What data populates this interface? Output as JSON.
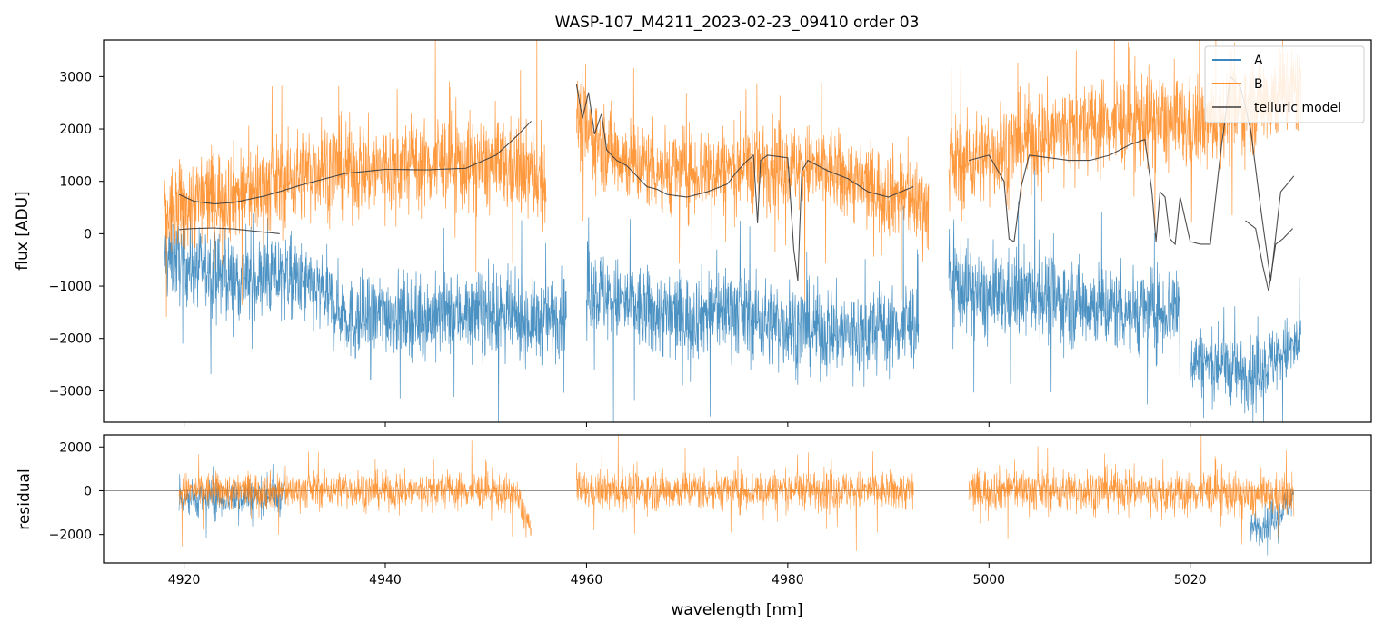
{
  "figure": {
    "title": "WASP-107_M4211_2023-02-23_09410  order 03"
  },
  "colors": {
    "A": "#1f77b4",
    "B": "#ff7f0e",
    "telluric": "#3b3b3b"
  },
  "chart_data": [
    {
      "type": "line",
      "panel": "top",
      "title": "WASP-107_M4211_2023-02-23_09410  order 03",
      "xlabel": "",
      "ylabel": "flux [ADU]",
      "xlim": [
        4912,
        5038
      ],
      "ylim": [
        -3600,
        3700
      ],
      "xticks": [
        4920,
        4940,
        4960,
        4980,
        5000,
        5020
      ],
      "yticks": [
        -3000,
        -2000,
        -1000,
        0,
        1000,
        2000,
        3000
      ],
      "legend": {
        "position": "top-right",
        "entries": [
          "A",
          "B",
          "telluric model"
        ]
      },
      "series": [
        {
          "name": "A",
          "style": "noisy",
          "segments": [
            {
              "x": [
                4918,
                4919,
                4922,
                4926,
                4930,
                4934,
                4937,
                4940,
                4944,
                4948,
                4952,
                4955,
                4958
              ],
              "y": [
                -400,
                -500,
                -700,
                -900,
                -800,
                -1200,
                -1700,
                -1500,
                -1600,
                -1500,
                -1600,
                -1700,
                -1500
              ],
              "noise": 1200
            },
            {
              "x": [
                4960,
                4963,
                4966,
                4970,
                4974,
                4978,
                4982,
                4986,
                4990,
                4993
              ],
              "y": [
                -1000,
                -1300,
                -1500,
                -1600,
                -1400,
                -1700,
                -1800,
                -1900,
                -1800,
                -1700
              ],
              "noise": 1300
            },
            {
              "x": [
                4996,
                5000,
                5004,
                5008,
                5012,
                5016,
                5019
              ],
              "y": [
                -800,
                -1300,
                -1100,
                -1300,
                -1400,
                -1500,
                -1400
              ],
              "noise": 1300
            },
            {
              "x": [
                5020,
                5023,
                5026,
                5029,
                5031
              ],
              "y": [
                -2400,
                -2500,
                -2700,
                -2300,
                -2100
              ],
              "noise": 1000
            }
          ]
        },
        {
          "name": "B",
          "style": "noisy",
          "segments": [
            {
              "x": [
                4918,
                4922,
                4926,
                4930,
                4934,
                4938,
                4942,
                4946,
                4950,
                4954,
                4956
              ],
              "y": [
                300,
                700,
                800,
                1000,
                1300,
                1200,
                1300,
                1400,
                1300,
                1200,
                1000
              ],
              "noise": 1400
            },
            {
              "x": [
                4959,
                4961,
                4964,
                4968,
                4972,
                4976,
                4980,
                4984,
                4988,
                4992,
                4994
              ],
              "y": [
                2200,
                1800,
                1400,
                1200,
                1200,
                1300,
                1300,
                1200,
                900,
                700,
                500
              ],
              "noise": 1300
            },
            {
              "x": [
                4996,
                5000,
                5004,
                5008,
                5012,
                5016,
                5020,
                5024,
                5028,
                5031
              ],
              "y": [
                1300,
                1500,
                1800,
                2000,
                2100,
                2200,
                2000,
                2300,
                2600,
                2800
              ],
              "noise": 1400
            }
          ]
        },
        {
          "name": "telluric model",
          "style": "smooth",
          "segments": [
            {
              "x": [
                4919.5,
                4921,
                4923,
                4925,
                4927,
                4929.5
              ],
              "y": [
                80,
                100,
                110,
                90,
                50,
                0
              ]
            },
            {
              "x": [
                4919.5,
                4921,
                4923,
                4925,
                4928,
                4932,
                4936,
                4940,
                4944,
                4948,
                4951,
                4953,
                4954.5
              ],
              "y": [
                750,
                620,
                570,
                600,
                720,
                950,
                1150,
                1230,
                1220,
                1250,
                1500,
                1850,
                2150
              ]
            },
            {
              "x": [
                4959,
                4959.6,
                4960.2,
                4960.8,
                4961.5,
                4962,
                4963,
                4964,
                4965,
                4966,
                4967,
                4968,
                4970,
                4972,
                4974,
                4975,
                4976,
                4976.6,
                4977,
                4977.3,
                4978,
                4980,
                4980.6,
                4981,
                4981.4,
                4982,
                4984,
                4986,
                4988,
                4990,
                4992.5
              ],
              "y": [
                2850,
                2200,
                2700,
                1900,
                2300,
                1600,
                1400,
                1300,
                1100,
                900,
                850,
                750,
                700,
                800,
                950,
                1200,
                1400,
                1500,
                200,
                1400,
                1500,
                1450,
                -300,
                -900,
                1200,
                1400,
                1200,
                1050,
                800,
                700,
                900
              ]
            },
            {
              "x": [
                4998,
                5000,
                5001.5,
                5002,
                5002.5,
                5003.2,
                5004,
                5006,
                5008,
                5010,
                5012,
                5014,
                5015.5,
                5016.2,
                5016.6,
                5017,
                5017.5,
                5018,
                5018.5,
                5019,
                5020,
                5021,
                5022,
                5023,
                5024,
                5025,
                5026,
                5027,
                5028,
                5029,
                5030.3
              ],
              "y": [
                1400,
                1500,
                1000,
                -100,
                -150,
                900,
                1500,
                1450,
                1400,
                1400,
                1500,
                1700,
                1800,
                800,
                -150,
                800,
                700,
                -100,
                -200,
                700,
                -150,
                -200,
                -200,
                1500,
                3000,
                2800,
                2000,
                500,
                -900,
                800,
                1100
              ]
            },
            {
              "x": [
                5025.5,
                5026.5,
                5027.2,
                5027.8,
                5028.5,
                5029.2,
                5030.2
              ],
              "y": [
                250,
                100,
                -600,
                -1100,
                -200,
                -100,
                100
              ]
            }
          ]
        }
      ]
    },
    {
      "type": "line",
      "panel": "bottom",
      "xlabel": "wavelength [nm]",
      "ylabel": "residual",
      "xlim": [
        4912,
        5038
      ],
      "ylim": [
        -3300,
        2550
      ],
      "xticks": [
        4920,
        4940,
        4960,
        4980,
        5000,
        5020
      ],
      "yticks": [
        -2000,
        0,
        2000
      ],
      "zero_line": true,
      "series": [
        {
          "name": "A",
          "style": "noisy",
          "segments": [
            {
              "x": [
                4919.5,
                4922,
                4925,
                4928,
                4930
              ],
              "y": [
                -200,
                -400,
                -300,
                -200,
                -300
              ],
              "noise": 1300
            },
            {
              "x": [
                5026,
                5027.5,
                5029,
                5030.3
              ],
              "y": [
                -1700,
                -1500,
                -900,
                -300
              ],
              "noise": 1200
            }
          ]
        },
        {
          "name": "B",
          "style": "noisy",
          "segments": [
            {
              "x": [
                4919.5,
                4925,
                4930,
                4935,
                4940,
                4945,
                4950,
                4953,
                4954.5
              ],
              "y": [
                0,
                0,
                0,
                100,
                0,
                50,
                0,
                -200,
                -1800
              ],
              "noise": 1300
            },
            {
              "x": [
                4959,
                4965,
                4970,
                4975,
                4980,
                4985,
                4990,
                4992.5
              ],
              "y": [
                0,
                0,
                50,
                0,
                100,
                0,
                0,
                0
              ],
              "noise": 1400
            },
            {
              "x": [
                4998,
                5002,
                5006,
                5010,
                5014,
                5018,
                5022,
                5026,
                5030.3
              ],
              "y": [
                0,
                100,
                0,
                0,
                100,
                -200,
                0,
                -300,
                -200
              ],
              "noise": 1500
            }
          ]
        }
      ]
    }
  ]
}
